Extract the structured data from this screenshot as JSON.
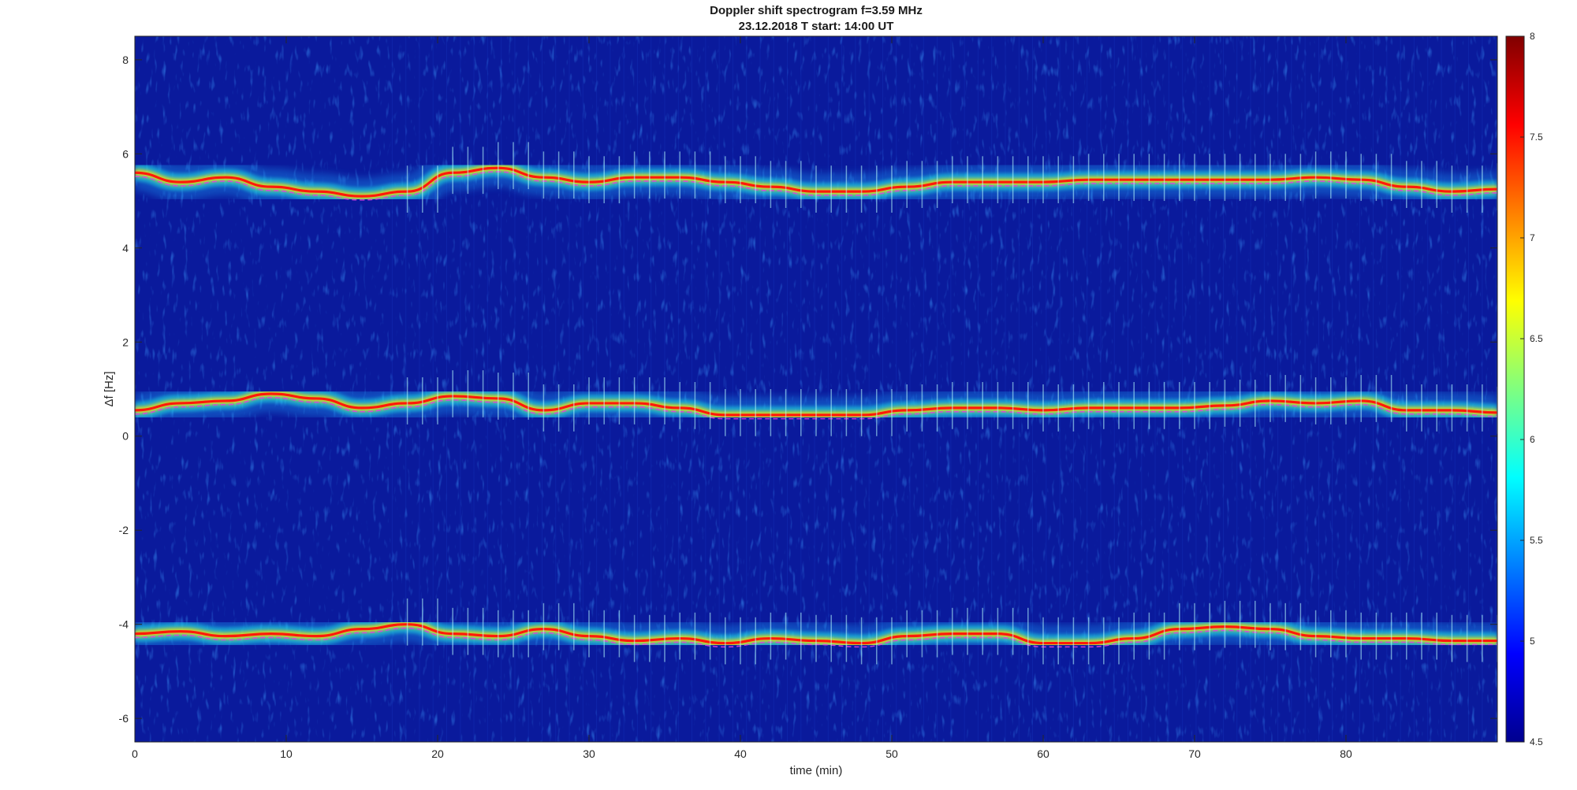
{
  "chart_data": {
    "type": "heatmap",
    "title": "Doppler shift spectrogram f=3.59 MHz",
    "subtitle": "23.12.2018   T start: 14:00 UT",
    "xlabel": "time (min)",
    "ylabel": "Δf [Hz]",
    "xlim": [
      0,
      90
    ],
    "ylim": [
      -6.5,
      8.5
    ],
    "xticks": [
      0,
      10,
      20,
      30,
      40,
      50,
      60,
      70,
      80
    ],
    "yticks": [
      -6,
      -4,
      -2,
      0,
      2,
      4,
      6,
      8
    ],
    "colorbar": {
      "colormap": "jet",
      "limits": [
        4.5,
        8
      ],
      "ticks": [
        "4.5",
        "5",
        "5.5",
        "6",
        "6.5",
        "7",
        "7.5",
        "8"
      ]
    },
    "background_color": "#0a1a9c",
    "series": [
      {
        "x": [
          0,
          3,
          6,
          9,
          12,
          15,
          18,
          21,
          24,
          27,
          30,
          33,
          36,
          39,
          42,
          45,
          48,
          51,
          54,
          57,
          60,
          63,
          66,
          69,
          72,
          75,
          78,
          81,
          84,
          87,
          90
        ],
        "y": [
          5.6,
          5.4,
          5.5,
          5.3,
          5.2,
          5.1,
          5.2,
          5.6,
          5.7,
          5.5,
          5.4,
          5.5,
          5.5,
          5.4,
          5.3,
          5.2,
          5.2,
          5.3,
          5.4,
          5.4,
          5.4,
          5.45,
          5.45,
          5.45,
          5.45,
          5.45,
          5.5,
          5.45,
          5.3,
          5.2,
          5.25
        ]
      },
      {
        "x": [
          0,
          3,
          6,
          9,
          12,
          15,
          18,
          21,
          24,
          27,
          30,
          33,
          36,
          39,
          42,
          45,
          48,
          51,
          54,
          57,
          60,
          63,
          66,
          69,
          72,
          75,
          78,
          81,
          84,
          87,
          90
        ],
        "y": [
          0.55,
          0.7,
          0.75,
          0.9,
          0.8,
          0.6,
          0.7,
          0.85,
          0.8,
          0.55,
          0.7,
          0.7,
          0.6,
          0.45,
          0.45,
          0.45,
          0.45,
          0.55,
          0.6,
          0.6,
          0.55,
          0.6,
          0.6,
          0.6,
          0.65,
          0.75,
          0.7,
          0.75,
          0.55,
          0.55,
          0.5
        ]
      },
      {
        "x": [
          0,
          3,
          6,
          9,
          12,
          15,
          18,
          21,
          24,
          27,
          30,
          33,
          36,
          39,
          42,
          45,
          48,
          51,
          54,
          57,
          60,
          63,
          66,
          69,
          72,
          75,
          78,
          81,
          84,
          87,
          90
        ],
        "y": [
          -4.2,
          -4.15,
          -4.25,
          -4.2,
          -4.25,
          -4.1,
          -4.0,
          -4.2,
          -4.25,
          -4.1,
          -4.25,
          -4.35,
          -4.3,
          -4.4,
          -4.3,
          -4.35,
          -4.4,
          -4.25,
          -4.2,
          -4.2,
          -4.4,
          -4.4,
          -4.3,
          -4.1,
          -4.05,
          -4.1,
          -4.25,
          -4.3,
          -4.3,
          -4.35,
          -4.35
        ]
      }
    ]
  }
}
